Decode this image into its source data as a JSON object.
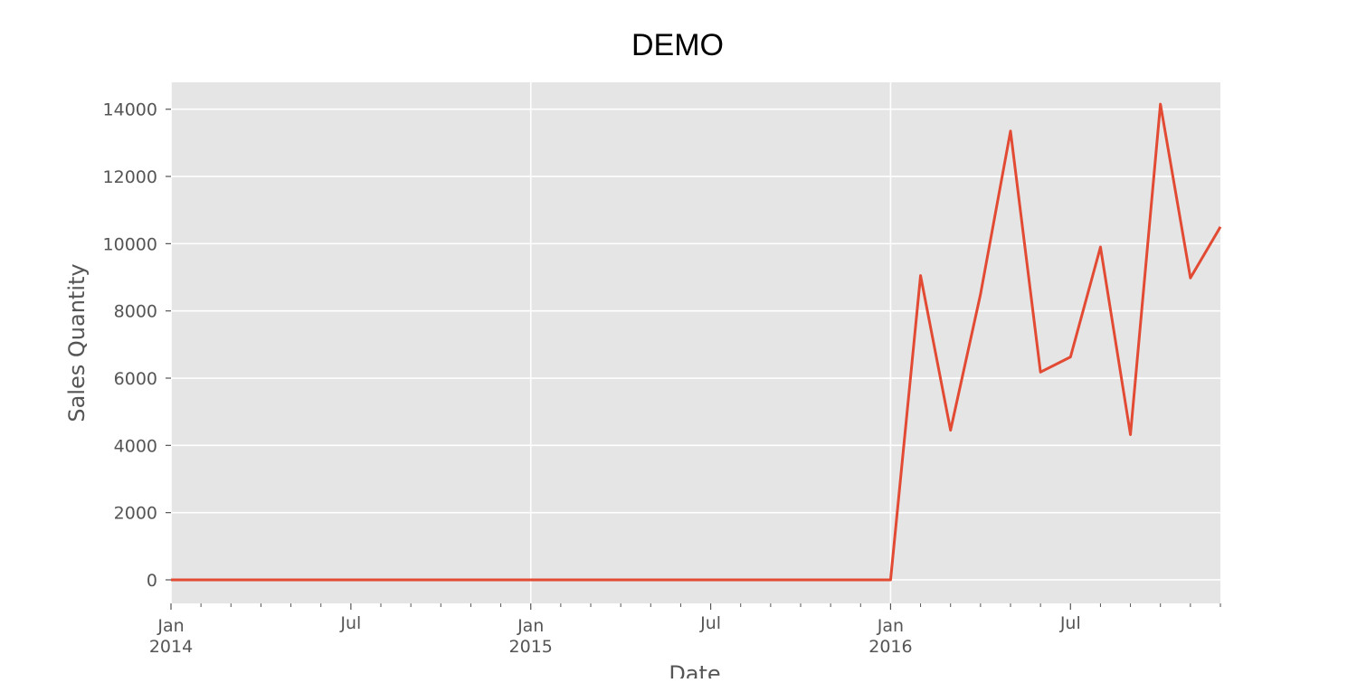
{
  "chart_data": {
    "type": "line",
    "title": "DEMO",
    "xlabel": "Date",
    "ylabel": "Sales Quantity",
    "grid": true,
    "x_tick_labels": [
      {
        "date": "2014-01",
        "label": "Jan",
        "sublabel": "2014"
      },
      {
        "date": "2014-07",
        "label": "Jul",
        "sublabel": ""
      },
      {
        "date": "2015-01",
        "label": "Jan",
        "sublabel": "2015"
      },
      {
        "date": "2015-07",
        "label": "Jul",
        "sublabel": ""
      },
      {
        "date": "2016-01",
        "label": "Jan",
        "sublabel": "2016"
      },
      {
        "date": "2016-07",
        "label": "Jul",
        "sublabel": ""
      }
    ],
    "y_ticks": [
      0,
      2000,
      4000,
      6000,
      8000,
      10000,
      12000,
      14000
    ],
    "xlim": [
      "2014-01",
      "2016-12"
    ],
    "ylim": [
      -700,
      14800
    ],
    "series": [
      {
        "color": "#e24a33",
        "points": [
          {
            "x": "2014-01",
            "y": 0
          },
          {
            "x": "2014-02",
            "y": 0
          },
          {
            "x": "2014-03",
            "y": 0
          },
          {
            "x": "2014-04",
            "y": 0
          },
          {
            "x": "2014-05",
            "y": 0
          },
          {
            "x": "2014-06",
            "y": 0
          },
          {
            "x": "2014-07",
            "y": 0
          },
          {
            "x": "2014-08",
            "y": 0
          },
          {
            "x": "2014-09",
            "y": 0
          },
          {
            "x": "2014-10",
            "y": 0
          },
          {
            "x": "2014-11",
            "y": 0
          },
          {
            "x": "2014-12",
            "y": 0
          },
          {
            "x": "2015-01",
            "y": 0
          },
          {
            "x": "2015-02",
            "y": 0
          },
          {
            "x": "2015-03",
            "y": 0
          },
          {
            "x": "2015-04",
            "y": 0
          },
          {
            "x": "2015-05",
            "y": 0
          },
          {
            "x": "2015-06",
            "y": 0
          },
          {
            "x": "2015-07",
            "y": 0
          },
          {
            "x": "2015-08",
            "y": 0
          },
          {
            "x": "2015-09",
            "y": 0
          },
          {
            "x": "2015-10",
            "y": 0
          },
          {
            "x": "2015-11",
            "y": 0
          },
          {
            "x": "2015-12",
            "y": 0
          },
          {
            "x": "2016-01",
            "y": 0
          },
          {
            "x": "2016-02",
            "y": 9050
          },
          {
            "x": "2016-03",
            "y": 4450
          },
          {
            "x": "2016-04",
            "y": 8500
          },
          {
            "x": "2016-05",
            "y": 13350
          },
          {
            "x": "2016-06",
            "y": 6180
          },
          {
            "x": "2016-07",
            "y": 6630
          },
          {
            "x": "2016-08",
            "y": 9900
          },
          {
            "x": "2016-09",
            "y": 4320
          },
          {
            "x": "2016-10",
            "y": 14150
          },
          {
            "x": "2016-11",
            "y": 8980
          },
          {
            "x": "2016-12",
            "y": 10500
          }
        ]
      }
    ]
  }
}
